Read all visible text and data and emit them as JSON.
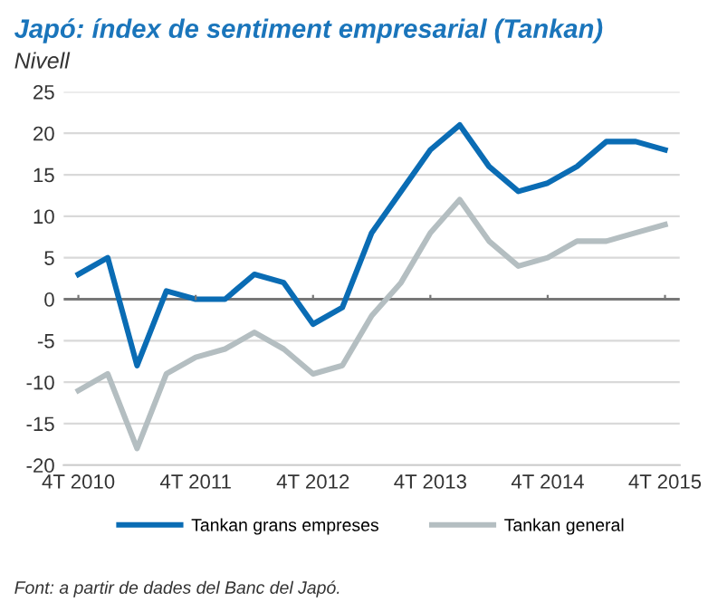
{
  "chart_data": {
    "type": "line",
    "title": "Japó: índex de sentiment empresarial (Tankan)",
    "ylabel": "Nivell",
    "categories": [
      "4T 2010",
      null,
      null,
      null,
      "4T 2011",
      null,
      null,
      null,
      "4T 2012",
      null,
      null,
      null,
      "4T 2013",
      null,
      null,
      null,
      "4T 2014",
      null,
      null,
      null,
      "4T 2015"
    ],
    "series": [
      {
        "name": "Tankan grans empreses",
        "color": "#0a6cb4",
        "values": [
          3,
          5,
          -8,
          1,
          0,
          0,
          3,
          2,
          -3,
          -1,
          8,
          13,
          18,
          21,
          16,
          13,
          14,
          16,
          19,
          19,
          18
        ]
      },
      {
        "name": "Tankan general",
        "color": "#b4bec1",
        "values": [
          -11,
          -9,
          -18,
          -9,
          -7,
          -6,
          -4,
          -6,
          -9,
          -8,
          -2,
          2,
          8,
          12,
          7,
          4,
          5,
          7,
          7,
          8,
          9
        ]
      }
    ],
    "ylim": [
      -20,
      25
    ],
    "yticks": [
      -20,
      -15,
      -10,
      -5,
      0,
      5,
      10,
      15,
      20,
      25
    ],
    "grid": "y",
    "legend": "bottom",
    "marker": "none",
    "line_style": "solid",
    "annotations": [
      "Font: a partir de dades del Banc del Japó."
    ]
  }
}
